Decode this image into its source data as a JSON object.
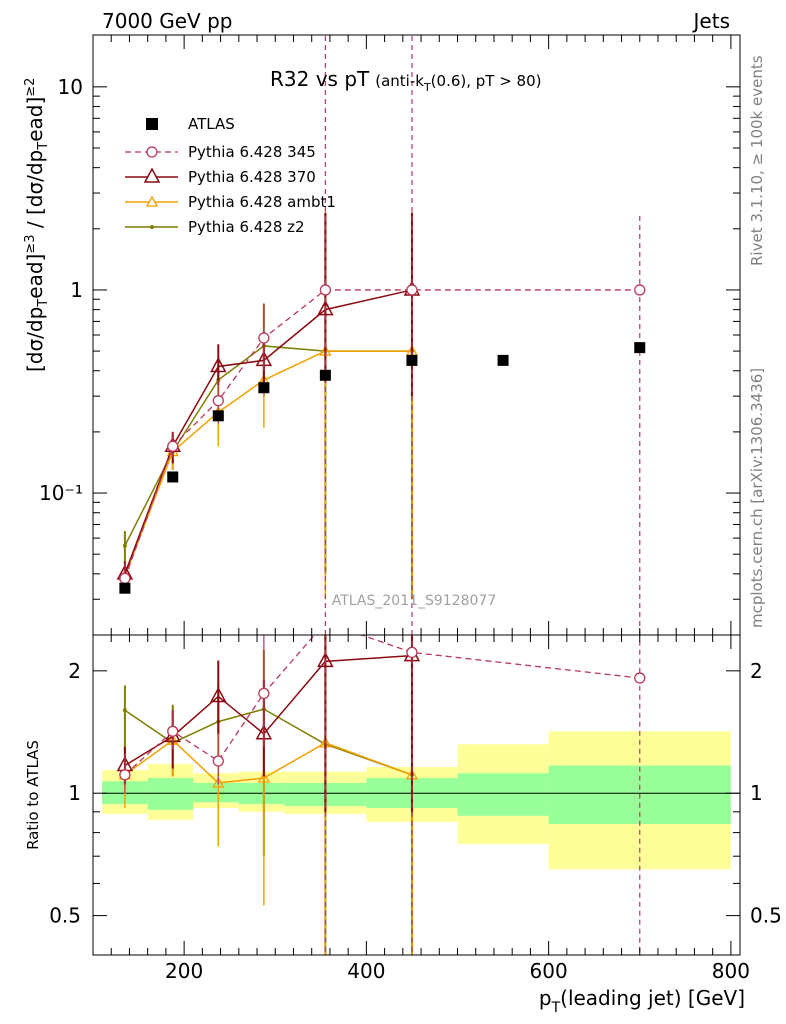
{
  "header": {
    "left": "7000 GeV pp",
    "right": "Jets"
  },
  "side": {
    "top": "Rivet 3.1.10, ≥ 100k events",
    "bottom": "mcplots.cern.ch [arXiv:1306.3436]"
  },
  "colors": {
    "atlas": "#000000",
    "p345": "#b8385a",
    "p370": "#8b0a12",
    "ambt1": "#f2a000",
    "z2": "#7f7f00",
    "band_inner": "#99ff99",
    "band_outer": "#ffff99"
  },
  "chart_data": [
    {
      "type": "scatter",
      "title_main": "R32 vs pT",
      "title_sub": "(anti-k",
      "title_sub_sub": "T",
      "title_sub_tail": "(0.6), pT > 80)",
      "ylabel": "[dσ/dpᵀlead]≥3 / [dσ/dpᵀlead]≥2",
      "ylabel_parts": [
        "[dσ/dp",
        "T",
        "ead]",
        "≥3",
        " / [dσ/dp",
        "T",
        "ead]",
        "≥2"
      ],
      "yscale": "log",
      "ylim": [
        0.02,
        18
      ],
      "xlim": [
        100,
        810
      ],
      "yticks": [
        "10⁻¹",
        "1",
        "10"
      ],
      "ref_label": "ATLAS_2011_S9128077",
      "legend_position": "top-left",
      "series": [
        {
          "name": "ATLAS",
          "style": "data",
          "x": [
            135,
            187.5,
            237.5,
            287.5,
            355,
            450,
            550,
            700
          ],
          "y": [
            0.034,
            0.12,
            0.24,
            0.33,
            0.38,
            0.45,
            0.45,
            0.52
          ]
        },
        {
          "name": "Pythia 6.428 345",
          "style": "dashed-circle",
          "x": [
            135,
            187.5,
            237.5,
            287.5,
            355,
            450,
            700
          ],
          "y": [
            0.038,
            0.17,
            0.285,
            0.58,
            1.0,
            1.0,
            1.0
          ]
        },
        {
          "name": "Pythia 6.428 370",
          "style": "triangle",
          "x": [
            135,
            187.5,
            237.5,
            287.5,
            355,
            450
          ],
          "y": [
            0.04,
            0.17,
            0.42,
            0.45,
            0.8,
            1.0
          ]
        },
        {
          "name": "Pythia 6.428 ambt1",
          "style": "small-triangle",
          "x": [
            135,
            187.5,
            237.5,
            287.5,
            355,
            450
          ],
          "y": [
            0.039,
            0.16,
            0.25,
            0.36,
            0.5,
            0.5
          ]
        },
        {
          "name": "Pythia 6.428 z2",
          "style": "dot",
          "x": [
            135,
            187.5,
            237.5,
            287.5,
            355,
            450
          ],
          "y": [
            0.055,
            0.16,
            0.36,
            0.53,
            0.5,
            0.5
          ]
        }
      ]
    },
    {
      "type": "scatter",
      "ylabel": "Ratio to ATLAS",
      "xlabel_parts": [
        "p",
        "T",
        "(leading jet) [GeV]"
      ],
      "xlim": [
        100,
        810
      ],
      "ylim": [
        0.4,
        2.45
      ],
      "yscale": "log",
      "xticks": [
        "200",
        "400",
        "600",
        "800"
      ],
      "yticks": [
        "0.5",
        "1",
        "2"
      ],
      "bands": {
        "x_edges": [
          110,
          160,
          210,
          260,
          310,
          400,
          500,
          600,
          800
        ],
        "inner_low": [
          0.94,
          0.91,
          0.95,
          0.94,
          0.93,
          0.92,
          0.88,
          0.84
        ],
        "inner_high": [
          1.07,
          1.09,
          1.06,
          1.06,
          1.06,
          1.09,
          1.12,
          1.17
        ],
        "outer_low": [
          0.89,
          0.86,
          0.92,
          0.9,
          0.89,
          0.85,
          0.75,
          0.65
        ],
        "outer_high": [
          1.14,
          1.18,
          1.12,
          1.13,
          1.13,
          1.16,
          1.32,
          1.42
        ]
      },
      "series": [
        {
          "name": "Pythia 6.428 345",
          "x": [
            135,
            187.5,
            237.5,
            287.5,
            355,
            450,
            700
          ],
          "y": [
            1.11,
            1.42,
            1.2,
            1.76,
            2.63,
            2.22,
            1.92
          ]
        },
        {
          "name": "Pythia 6.428 370",
          "x": [
            135,
            187.5,
            237.5,
            287.5,
            355,
            450
          ],
          "y": [
            1.17,
            1.38,
            1.73,
            1.4,
            2.11,
            2.18
          ]
        },
        {
          "name": "Pythia 6.428 ambt1",
          "x": [
            135,
            187.5,
            237.5,
            287.5,
            355,
            450
          ],
          "y": [
            1.11,
            1.35,
            1.06,
            1.09,
            1.33,
            1.11
          ]
        },
        {
          "name": "Pythia 6.428 z2",
          "x": [
            135,
            187.5,
            237.5,
            287.5,
            355,
            450
          ],
          "y": [
            1.6,
            1.33,
            1.5,
            1.61,
            1.32,
            1.11
          ]
        }
      ]
    }
  ]
}
